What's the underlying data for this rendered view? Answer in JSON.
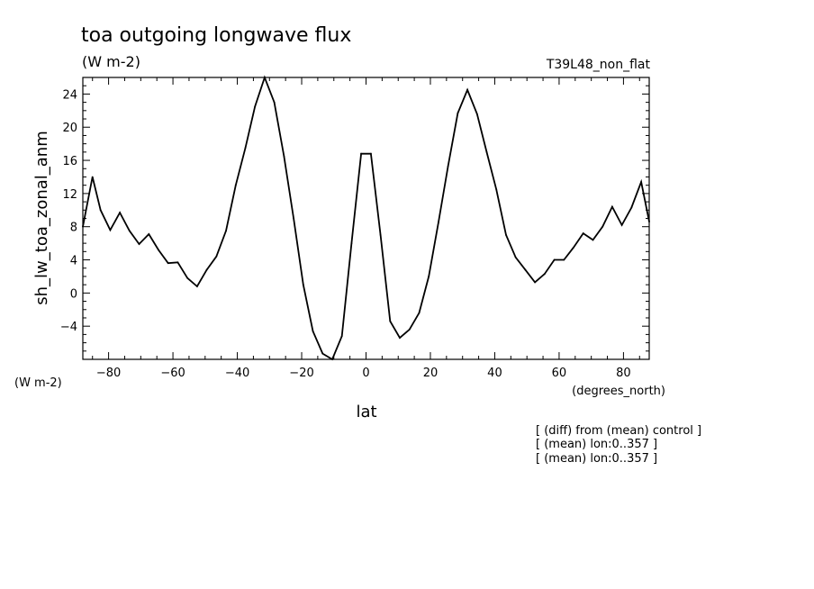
{
  "chart_data": {
    "type": "line",
    "title": "toa outgoing longwave flux",
    "subtitle": "(W m-2)",
    "experiment": "T39L48_non_flat",
    "ylabel": "sh_lw_toa_zonal_anm",
    "yunits": "(W m-2)",
    "xlabel": "lat",
    "xunits": "(degrees_north)",
    "xlim": [
      -88,
      88
    ],
    "ylim": [
      -8,
      26
    ],
    "xticks": [
      -80,
      -60,
      -40,
      -20,
      0,
      20,
      40,
      60,
      80
    ],
    "yticks": [
      -4,
      0,
      4,
      8,
      12,
      16,
      20,
      24
    ],
    "grid": false,
    "notes": [
      "[ (diff) from (mean) control ]",
      "[ (mean) lon:0..357 ]",
      "[ (mean) lon:0..357 ]"
    ],
    "series": [
      {
        "x": [
          -88,
          -85,
          -82.5,
          -79.5,
          -76.5,
          -73.5,
          -70.5,
          -67.5,
          -64.5,
          -61.5,
          -58.5,
          -55.5,
          -52.5,
          -49.5,
          -46.5,
          -43.5,
          -40.5,
          -37.5,
          -34.5,
          -31.5,
          -28.5,
          -25.5,
          -22.5,
          -19.5,
          -16.5,
          -13.5,
          -10.5,
          -7.5,
          -4.5,
          -1.5,
          1.5,
          4.5,
          7.5,
          10.5,
          13.5,
          16.5,
          19.5,
          22.5,
          25.5,
          28.5,
          31.5,
          34.5,
          37.5,
          40.5,
          43.5,
          46.5,
          49.5,
          52.5,
          55.5,
          58.5,
          61.5,
          64.5,
          67.5,
          70.5,
          73.5,
          76.5,
          79.5,
          82.5,
          85.5,
          88
        ],
        "values": [
          8.0,
          14.0,
          10.0,
          7.6,
          9.7,
          7.5,
          5.9,
          7.1,
          5.2,
          3.6,
          3.7,
          1.8,
          0.8,
          2.8,
          4.4,
          7.5,
          13.0,
          17.5,
          22.5,
          26.0,
          23.0,
          16.5,
          9.0,
          1.0,
          -4.6,
          -7.3,
          -8.0,
          -5.2,
          6.0,
          16.8,
          16.8,
          7.0,
          -3.4,
          -5.4,
          -4.4,
          -2.4,
          2.0,
          8.5,
          15.3,
          21.7,
          24.5,
          21.6,
          17.0,
          12.5,
          7.0,
          4.3,
          2.8,
          1.3,
          2.3,
          4.0,
          4.0,
          5.5,
          7.2,
          6.4,
          8.0,
          10.4,
          8.2,
          10.3,
          13.4,
          8.6
        ]
      }
    ]
  }
}
